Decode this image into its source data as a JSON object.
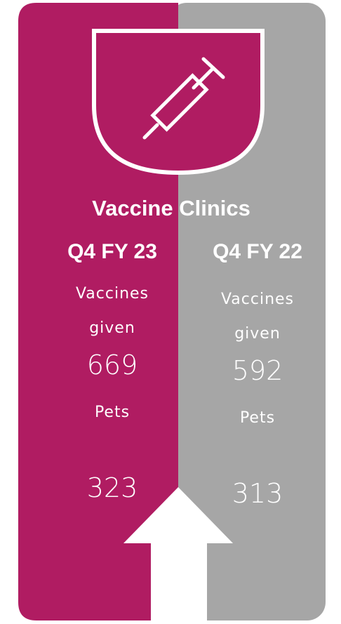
{
  "title": "Vaccine Clinics",
  "columns": [
    {
      "period": "Q4 FY 23",
      "vaccines_label": [
        "Vaccines",
        "given"
      ],
      "vaccines": "669",
      "pets_label": "Pets",
      "pets": "323"
    },
    {
      "period": "Q4 FY 22",
      "vaccines_label": [
        "Vaccines",
        "given"
      ],
      "vaccines": "592",
      "pets_label": "Pets",
      "pets": "313"
    }
  ]
}
